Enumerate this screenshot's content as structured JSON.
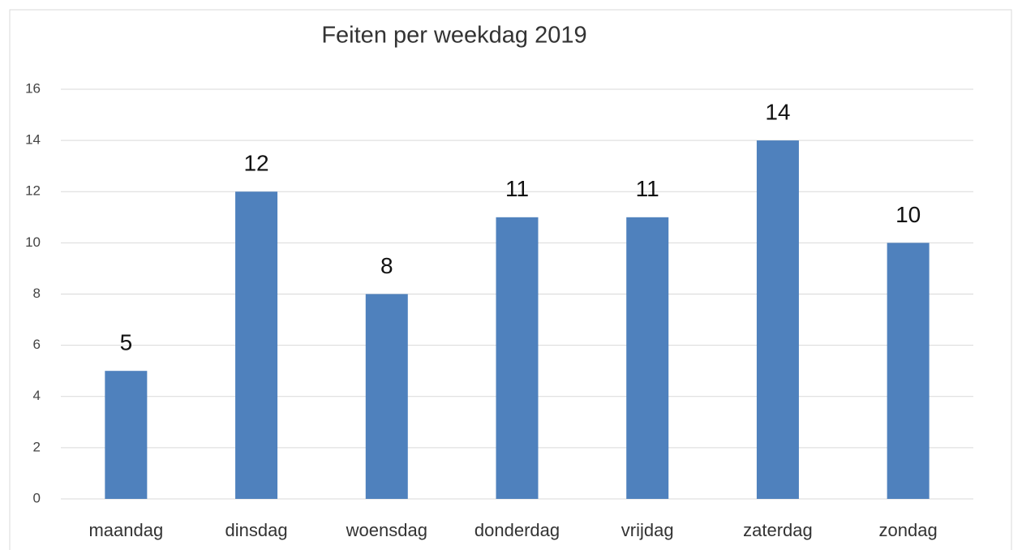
{
  "chart_data": {
    "type": "bar",
    "title": "Feiten per weekdag 2019",
    "categories": [
      "maandag",
      "dinsdag",
      "woensdag",
      "donderdag",
      "vrijdag",
      "zaterdag",
      "zondag"
    ],
    "values": [
      5,
      12,
      8,
      11,
      11,
      14,
      10
    ],
    "color": "#4f81bd",
    "ylim": [
      0,
      16
    ],
    "yticks": [
      0,
      2,
      4,
      6,
      8,
      10,
      12,
      14,
      16
    ],
    "grid": true
  }
}
